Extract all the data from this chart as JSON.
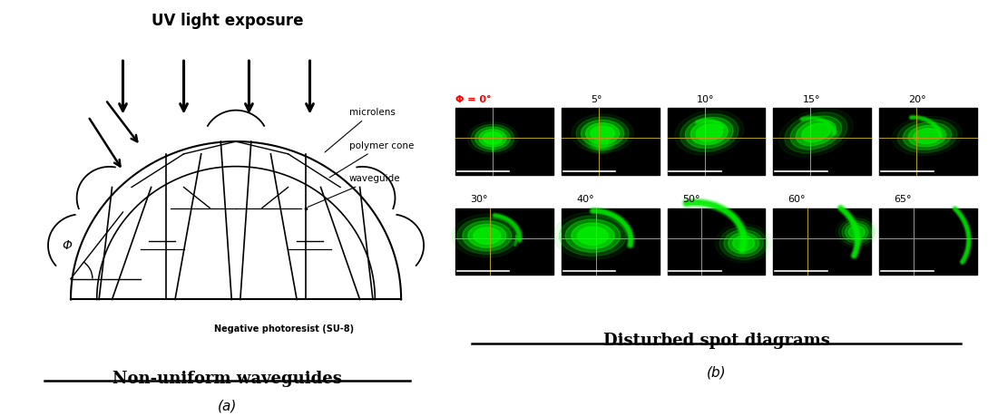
{
  "title_uv": "UV light exposure",
  "label_microlens": "microlens",
  "label_polymer_cone": "polymer cone",
  "label_waveguide": "waveguide",
  "label_photoresist": "Negative photoresist (SU-8)",
  "label_phi": "Φ",
  "caption_a": "Non-uniform waveguides",
  "caption_b": "Disturbed spot diagrams",
  "sub_a": "(a)",
  "sub_b": "(b)",
  "row1_labels": [
    "Φ = 0°",
    "5°",
    "10°",
    "15°",
    "20°"
  ],
  "row2_labels": [
    "30°",
    "40°",
    "50°",
    "60°",
    "65°"
  ],
  "bg_color": "#ffffff",
  "fig_width": 10.89,
  "fig_height": 4.59,
  "fig_dpi": 100
}
